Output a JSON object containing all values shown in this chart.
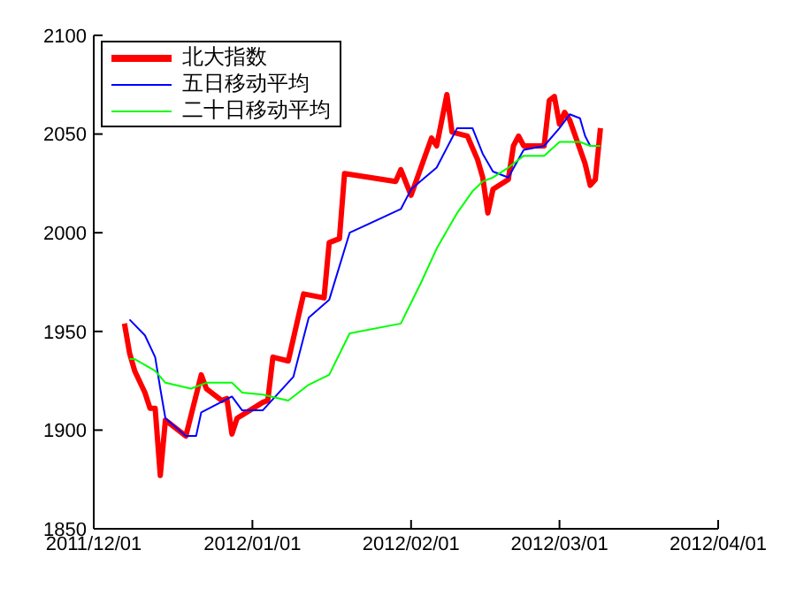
{
  "chart_data": {
    "type": "line",
    "xlim": [
      "2011-12-01",
      "2012-04-01"
    ],
    "xticks": [
      {
        "value": "2011-12-01",
        "label": "2011/12/01"
      },
      {
        "value": "2012-01-01",
        "label": "2012/01/01"
      },
      {
        "value": "2012-02-01",
        "label": "2012/02/01"
      },
      {
        "value": "2012-03-01",
        "label": "2012/03/01"
      },
      {
        "value": "2012-04-01",
        "label": "2012/04/01"
      }
    ],
    "ylim": [
      1850,
      2100
    ],
    "yticks": [
      1850,
      1900,
      1950,
      2000,
      2050,
      2100
    ],
    "grid": false,
    "legend": "top left",
    "marker": "none",
    "line_style": "solid",
    "series": [
      {
        "name": "北大指数",
        "color": "#ff0000",
        "x": [
          "2011-12-07",
          "2011-12-08",
          "2011-12-09",
          "2011-12-11",
          "2011-12-12",
          "2011-12-13",
          "2011-12-14",
          "2011-12-15",
          "2011-12-19",
          "2011-12-22",
          "2011-12-23",
          "2011-12-26",
          "2011-12-27",
          "2011-12-28",
          "2011-12-29",
          "2012-01-03",
          "2012-01-04",
          "2012-01-05",
          "2012-01-08",
          "2012-01-11",
          "2012-01-15",
          "2012-01-16",
          "2012-01-18",
          "2012-01-19",
          "2012-01-29",
          "2012-01-30",
          "2012-02-01",
          "2012-02-05",
          "2012-02-06",
          "2012-02-08",
          "2012-02-09",
          "2012-02-12",
          "2012-02-14",
          "2012-02-15",
          "2012-02-16",
          "2012-02-17",
          "2012-02-20",
          "2012-02-21",
          "2012-02-22",
          "2012-02-23",
          "2012-02-27",
          "2012-02-28",
          "2012-02-29",
          "2012-03-01",
          "2012-03-02",
          "2012-03-03",
          "2012-03-06",
          "2012-03-07",
          "2012-03-08",
          "2012-03-09"
        ],
        "values": [
          1954,
          1939,
          1930,
          1919,
          1911,
          1911,
          1877,
          1905,
          1897,
          1928,
          1921,
          1915,
          1916,
          1898,
          1906,
          1914,
          1915,
          1937,
          1935,
          1969,
          1967,
          1995,
          1997,
          2030,
          2026,
          2032,
          2019,
          2048,
          2044,
          2070,
          2051,
          2049,
          2037,
          2028,
          2010,
          2022,
          2027,
          2044,
          2049,
          2044,
          2044,
          2067,
          2069,
          2055,
          2061,
          2057,
          2035,
          2024,
          2027,
          2053
        ]
      },
      {
        "name": "五日移动平均",
        "color": "#0000ff",
        "x": [
          "2011-12-08",
          "2011-12-11",
          "2011-12-13",
          "2011-12-14",
          "2011-12-15",
          "2011-12-19",
          "2011-12-21",
          "2011-12-22",
          "2011-12-28",
          "2011-12-30",
          "2012-01-03",
          "2012-01-09",
          "2012-01-12",
          "2012-01-16",
          "2012-01-20",
          "2012-01-30",
          "2012-02-01",
          "2012-02-06",
          "2012-02-10",
          "2012-02-13",
          "2012-02-15",
          "2012-02-17",
          "2012-02-20",
          "2012-02-23",
          "2012-02-27",
          "2012-03-01",
          "2012-03-03",
          "2012-03-05",
          "2012-03-06",
          "2012-03-07"
        ],
        "values": [
          1956,
          1948,
          1937,
          1921,
          1906,
          1897,
          1897,
          1909,
          1917,
          1910,
          1910,
          1927,
          1957,
          1966,
          2000,
          2012,
          2022,
          2033,
          2053,
          2053,
          2040,
          2031,
          2028,
          2042,
          2044,
          2053,
          2060,
          2058,
          2049,
          2044
        ]
      },
      {
        "name": "二十日移动平均",
        "color": "#00ff00",
        "x": [
          "2011-12-08",
          "2011-12-09",
          "2011-12-13",
          "2011-12-15",
          "2011-12-20",
          "2011-12-23",
          "2011-12-28",
          "2011-12-30",
          "2012-01-03",
          "2012-01-08",
          "2012-01-12",
          "2012-01-16",
          "2012-01-20",
          "2012-01-30",
          "2012-02-03",
          "2012-02-06",
          "2012-02-10",
          "2012-02-13",
          "2012-02-15",
          "2012-02-17",
          "2012-02-20",
          "2012-02-23",
          "2012-02-27",
          "2012-03-01",
          "2012-03-05",
          "2012-03-07",
          "2012-03-09"
        ],
        "values": [
          1936,
          1936,
          1930,
          1924,
          1921,
          1924,
          1924,
          1919,
          1918,
          1915,
          1923,
          1928,
          1949,
          1954,
          1975,
          1992,
          2010,
          2021,
          2026,
          2028,
          2033,
          2039,
          2039,
          2046,
          2046,
          2044,
          2044
        ]
      }
    ]
  }
}
